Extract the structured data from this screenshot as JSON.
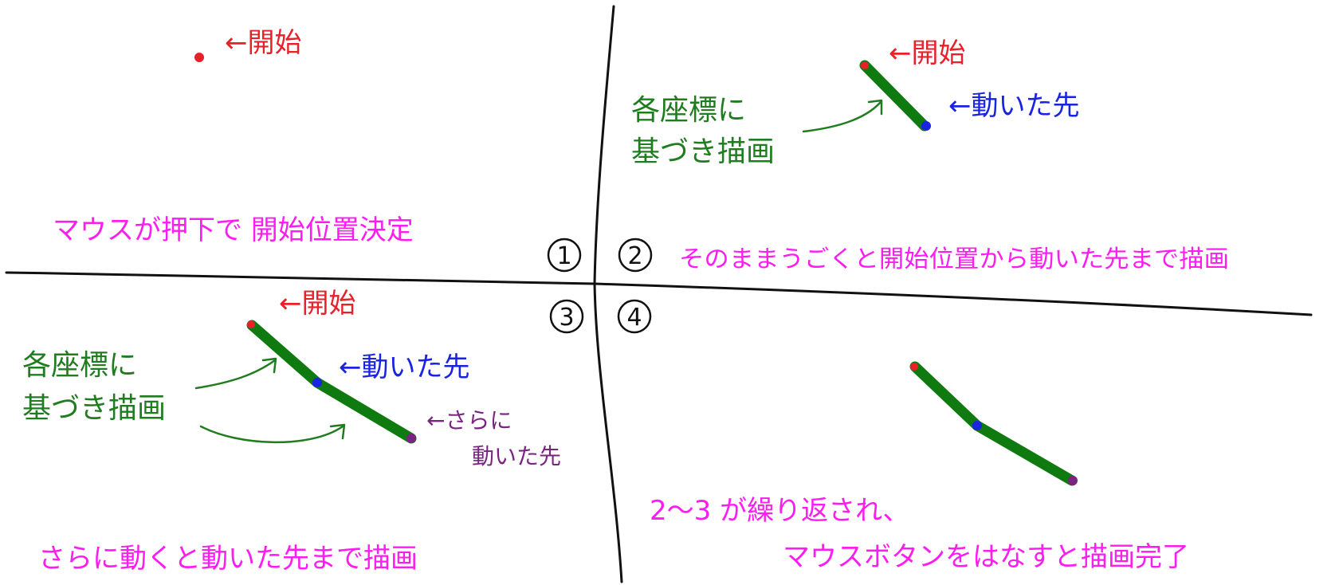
{
  "colors": {
    "red": "#e8202a",
    "green": "#1f7d1f",
    "stroke_green": "#0f7a0f",
    "blue": "#1a24e0",
    "purple": "#7a2482",
    "magenta": "#ff1cf0",
    "ink": "#111111"
  },
  "labels": {
    "start": "←開始",
    "draw_by_coords_line1": "各座標に",
    "draw_by_coords_line2": "基づき描画",
    "moved_to": "←動いた先",
    "further_line1": "←さらに",
    "further_line2": "動いた先"
  },
  "steps": {
    "n1": "1",
    "n2": "2",
    "n3": "3",
    "n4": "4",
    "step1": "マウスが押下で 開始位置決定",
    "step2": "そのままうごくと開始位置から動いた先まで描画",
    "step3": "さらに動くと動いた先まで描画",
    "step4_line1": "2〜3 が繰り返され、",
    "step4_line2": "マウスボタンをはなすと描画完了"
  }
}
